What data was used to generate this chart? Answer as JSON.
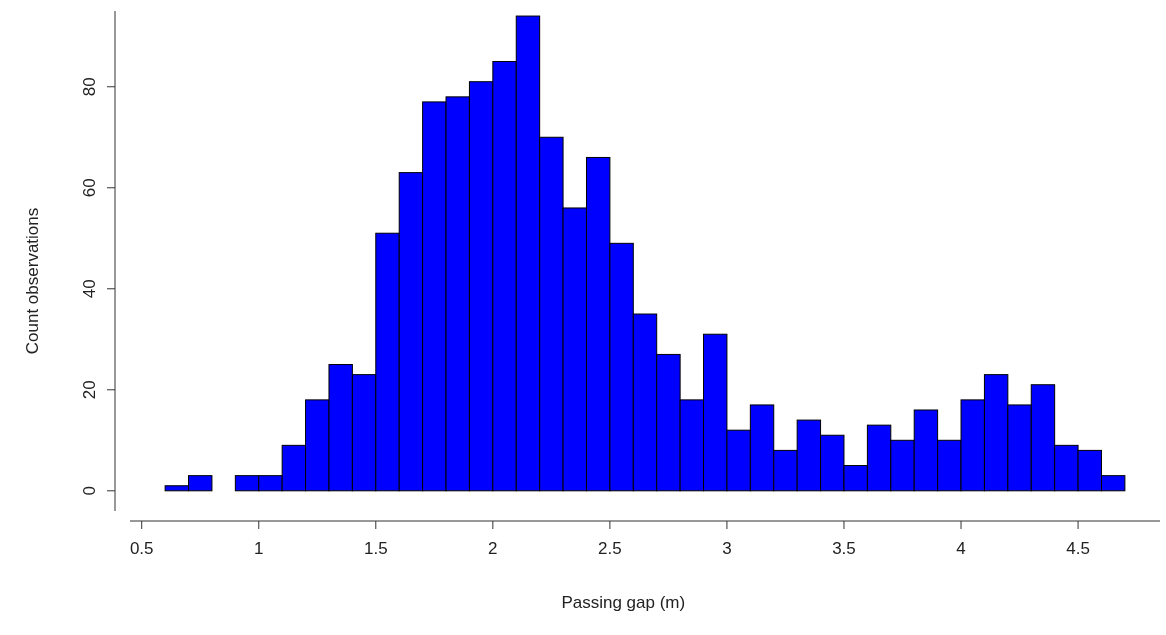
{
  "chart_data": {
    "type": "histogram",
    "xlabel": "Passing gap (m)",
    "ylabel": "Count observations",
    "bins": [
      0.6,
      0.7,
      0.8,
      0.9,
      1.0,
      1.1,
      1.2,
      1.3,
      1.4,
      1.5,
      1.6,
      1.7,
      1.8,
      1.9,
      2.0,
      2.1,
      2.2,
      2.3,
      2.4,
      2.5,
      2.6,
      2.7,
      2.8,
      2.9,
      3.0,
      3.1,
      3.2,
      3.3,
      3.4,
      3.5,
      3.6,
      3.7,
      3.8,
      3.9,
      4.0,
      4.1,
      4.2,
      4.3,
      4.4,
      4.5,
      4.6,
      4.7
    ],
    "values": [
      1,
      3,
      0,
      3,
      3,
      9,
      18,
      25,
      23,
      51,
      63,
      77,
      78,
      81,
      85,
      94,
      70,
      56,
      66,
      49,
      35,
      27,
      18,
      31,
      12,
      17,
      8,
      14,
      11,
      5,
      13,
      10,
      16,
      10,
      18,
      23,
      17,
      21,
      9,
      8,
      3
    ],
    "color": "#0000ff",
    "xlim": [
      0.45,
      4.85
    ],
    "xticks": [
      0.5,
      1,
      1.5,
      2,
      2.5,
      3,
      3.5,
      4,
      4.5
    ],
    "ylim": [
      -4,
      95
    ],
    "yticks": [
      0,
      20,
      40,
      60,
      80
    ]
  }
}
